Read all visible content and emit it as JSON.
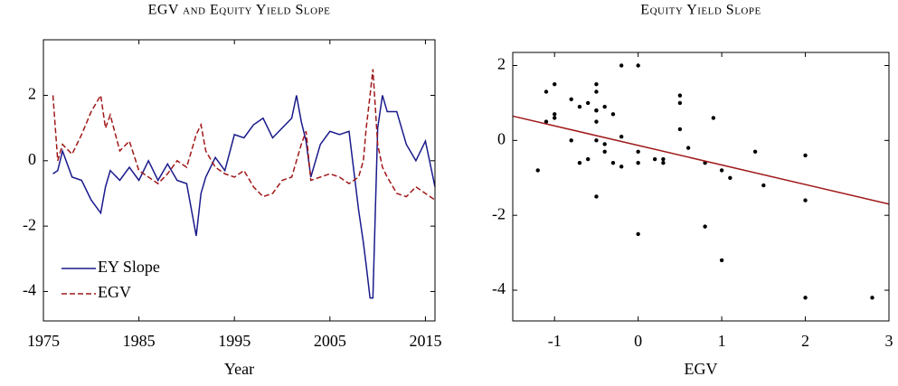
{
  "chart_data": [
    {
      "type": "line",
      "title": "EGV and Equity Yield Slope",
      "xlabel": "Year",
      "x": [
        1976,
        1976.5,
        1977,
        1978,
        1979,
        1980,
        1981,
        1981.5,
        1982,
        1983,
        1984,
        1985,
        1986,
        1987,
        1988,
        1989,
        1990,
        1991,
        1991.5,
        1992,
        1993,
        1994,
        1995,
        1996,
        1997,
        1998,
        1999,
        2000,
        2001,
        2001.5,
        2002,
        2002.5,
        2003,
        2004,
        2005,
        2006,
        2007,
        2008,
        2008.5,
        2008.8,
        2009.2,
        2009.5,
        2010,
        2010.5,
        2011,
        2012,
        2013,
        2014,
        2015,
        2016
      ],
      "series": [
        {
          "name": "EY Slope",
          "color": "#1a1a8c",
          "dash": false,
          "values": [
            -0.4,
            -0.3,
            0.3,
            -0.5,
            -0.6,
            -1.2,
            -1.6,
            -0.8,
            -0.3,
            -0.6,
            -0.2,
            -0.6,
            0.0,
            -0.6,
            -0.1,
            -0.6,
            -0.7,
            -2.3,
            -1.0,
            -0.5,
            0.1,
            -0.3,
            0.8,
            0.7,
            1.1,
            1.3,
            0.7,
            1.0,
            1.3,
            2.0,
            1.2,
            0.6,
            -0.5,
            0.5,
            0.9,
            0.8,
            0.9,
            -1.5,
            -2.5,
            -3.2,
            -4.2,
            -4.2,
            1.0,
            2.0,
            1.5,
            1.5,
            0.5,
            0.0,
            0.6,
            -0.8
          ]
        },
        {
          "name": "EGV",
          "color": "#a01818",
          "dash": true,
          "values": [
            2.0,
            0.0,
            0.5,
            0.2,
            0.8,
            1.5,
            2.0,
            1.0,
            1.4,
            0.3,
            0.6,
            -0.3,
            -0.5,
            -0.7,
            -0.4,
            0.0,
            -0.2,
            0.8,
            1.1,
            0.3,
            -0.2,
            -0.4,
            -0.5,
            -0.3,
            -0.8,
            -1.1,
            -1.0,
            -0.6,
            -0.5,
            0.0,
            0.5,
            0.9,
            -0.6,
            -0.5,
            -0.4,
            -0.5,
            -0.7,
            -0.5,
            0.0,
            1.0,
            2.0,
            2.8,
            0.5,
            -0.2,
            -0.5,
            -1.0,
            -1.1,
            -0.8,
            -1.0,
            -1.2
          ]
        }
      ],
      "xlim": [
        1975,
        2016
      ],
      "xticks": [
        1975,
        1985,
        1995,
        2005,
        2015
      ],
      "ylim": [
        -4.9,
        3.7
      ],
      "yticks": [
        -4,
        -2,
        0,
        2
      ],
      "legend": "lower left"
    },
    {
      "type": "scatter",
      "title": "Equity Yield Slope",
      "xlabel": "EGV",
      "color": "#000000",
      "x": [
        2.0,
        0.0,
        0.5,
        0.2,
        0.8,
        1.5,
        2.0,
        1.0,
        1.4,
        0.3,
        0.6,
        -0.3,
        -0.5,
        -0.7,
        -0.4,
        0.0,
        -0.2,
        0.8,
        1.1,
        0.3,
        -0.2,
        -0.4,
        -0.5,
        -0.3,
        -0.8,
        -1.1,
        -1.0,
        -0.6,
        -0.5,
        0.0,
        0.5,
        0.9,
        -0.6,
        -0.5,
        -0.4,
        -0.5,
        -0.7,
        -0.5,
        0.0,
        1.0,
        2.0,
        2.8,
        0.5,
        -0.2,
        -0.5,
        -1.0,
        -1.1,
        -0.8,
        -1.0,
        -1.2
      ],
      "y": [
        -0.4,
        -0.3,
        0.3,
        -0.5,
        -0.6,
        -1.2,
        -1.6,
        -0.8,
        -0.3,
        -0.6,
        -0.2,
        -0.6,
        0.0,
        -0.6,
        -0.1,
        -0.6,
        -0.7,
        -2.3,
        -1.0,
        -0.5,
        0.1,
        -0.3,
        0.8,
        0.7,
        1.1,
        1.3,
        0.7,
        1.0,
        1.3,
        2.0,
        1.2,
        0.6,
        -0.5,
        0.5,
        0.9,
        0.8,
        0.9,
        -1.5,
        -2.5,
        -3.2,
        -4.2,
        -4.2,
        1.0,
        2.0,
        1.5,
        1.5,
        0.5,
        0.0,
        0.6,
        -0.8
      ],
      "fit_line": {
        "x": [
          -1.5,
          3.0
        ],
        "y": [
          0.65,
          -1.7
        ],
        "color": "#a01818"
      },
      "xlim": [
        -1.5,
        3.0
      ],
      "xticks": [
        -1,
        0,
        1,
        2,
        3
      ],
      "ylim": [
        -4.82,
        2.35
      ],
      "yticks": [
        -4,
        -2,
        0,
        2
      ]
    }
  ]
}
